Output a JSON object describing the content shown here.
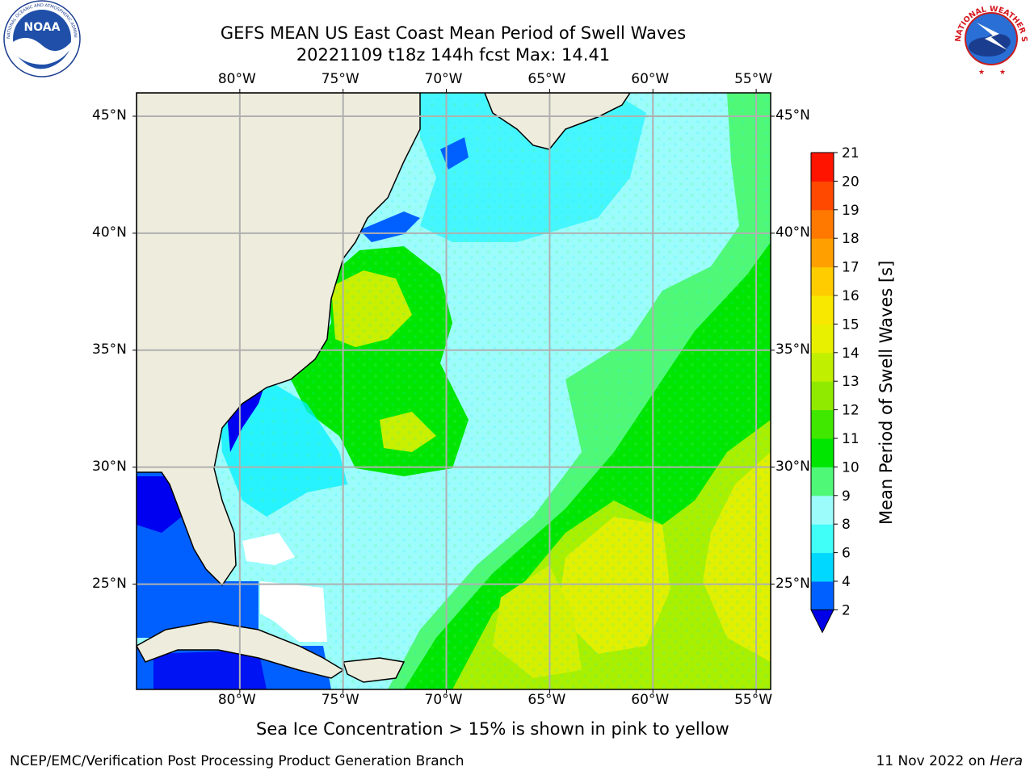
{
  "header": {
    "title_line1": "GEFS MEAN US East Coast Mean Period of Swell Waves",
    "title_line2": "20221109 t18z 144h fcst   Max: 14.41"
  },
  "logos": {
    "left": {
      "text": "NOAA",
      "ring_text": "NATIONAL OCEANIC AND ATMOSPHERIC ADMINISTRATION · U.S. DEPARTMENT OF COMMERCE",
      "icon": "noaa-logo-icon"
    },
    "right": {
      "ring_text": "NATIONAL WEATHER SERVICE",
      "icon": "nws-logo-icon"
    }
  },
  "map": {
    "lon_labels": [
      "80°W",
      "75°W",
      "70°W",
      "65°W",
      "60°W",
      "55°W"
    ],
    "lat_labels": [
      "45°N",
      "40°N",
      "35°N",
      "30°N",
      "25°N"
    ],
    "lon_values": [
      -80,
      -75,
      -70,
      -65,
      -60,
      -55
    ],
    "lat_values": [
      45,
      40,
      35,
      30,
      25
    ],
    "lon_range": [
      -85,
      -54.3
    ],
    "lat_range": [
      20.5,
      46
    ],
    "grid": true,
    "colors": {
      "land": "#eeeddd",
      "ocean_pale": "#9cfcfc",
      "ocean_cyan": "#00f0ff",
      "swell_green": "#00e600",
      "swell_yellowgreen": "#a8f000",
      "swell_yellow": "#e0f000",
      "swell_blue": "#0000f0",
      "ice_white": "#ffffff"
    }
  },
  "colorbar": {
    "label": "Mean Period of Swell Waves [s]",
    "ticks": [
      "2",
      "4",
      "6",
      "8",
      "9",
      "10",
      "11",
      "12",
      "13",
      "14",
      "15",
      "16",
      "17",
      "18",
      "19",
      "20",
      "21"
    ],
    "colors": [
      "#0060ff",
      "#00d8ff",
      "#40fff8",
      "#9cfcfc",
      "#50f878",
      "#00e600",
      "#40e800",
      "#90ea00",
      "#c0f000",
      "#e8f000",
      "#f8e800",
      "#ffcc00",
      "#ffa000",
      "#ff7800",
      "#ff4800",
      "#ff1400"
    ],
    "extend_color": "#0000e8"
  },
  "note": "Sea Ice Concentration > 15% is shown in pink to yellow",
  "footer": {
    "left": "NCEP/EMC/Verification Post Processing Product Generation Branch",
    "date": "11 Nov 2022 on ",
    "machine": "Hera"
  }
}
